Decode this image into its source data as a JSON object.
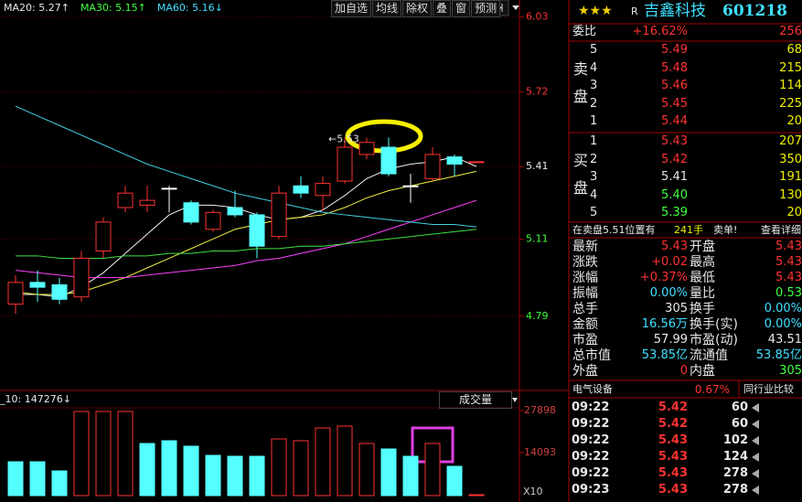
{
  "toolbar": [
    "加自选",
    "均线",
    "除权",
    "叠",
    "窗",
    "预测"
  ],
  "chart_data": [
    {
      "type": "candlestick",
      "legend": [
        {
          "text": "MA20: 5.27↑",
          "color": "#e8e8e8"
        },
        {
          "text": "MA30: 5.15↑",
          "color": "#40ff40"
        },
        {
          "text": "MA60: 5.16↓",
          "color": "#40e0ff"
        }
      ],
      "open": [
        4.84,
        4.93,
        4.92,
        4.87,
        5.06,
        5.24,
        5.25,
        5.32,
        5.26,
        5.15,
        5.24,
        5.21,
        5.12,
        5.33,
        5.29,
        5.35,
        5.46,
        5.49,
        5.33,
        5.36,
        5.45,
        5.43
      ],
      "high": [
        4.96,
        4.98,
        4.95,
        5.06,
        5.2,
        5.33,
        5.33,
        5.33,
        5.27,
        5.23,
        5.31,
        5.22,
        5.33,
        5.37,
        5.37,
        5.53,
        5.53,
        5.53,
        5.38,
        5.49,
        5.46,
        5.43
      ],
      "low": [
        4.8,
        4.85,
        4.84,
        4.85,
        5.03,
        5.22,
        5.22,
        5.22,
        5.17,
        5.14,
        5.2,
        5.03,
        5.11,
        5.28,
        5.23,
        5.34,
        5.44,
        5.37,
        5.26,
        5.35,
        5.37,
        5.43
      ],
      "close": [
        4.93,
        4.91,
        4.86,
        5.03,
        5.18,
        5.3,
        5.27,
        5.32,
        5.18,
        5.22,
        5.21,
        5.08,
        5.3,
        5.3,
        5.34,
        5.49,
        5.51,
        5.38,
        5.33,
        5.46,
        5.42,
        5.43
      ],
      "colors": [
        "#ff3232",
        "#54ffff",
        "#54ffff",
        "#ff3232",
        "#ff3232",
        "#ff3232",
        "#ff3232",
        "#ffffff",
        "#54ffff",
        "#ff3232",
        "#54ffff",
        "#54ffff",
        "#ff3232",
        "#54ffff",
        "#ff3232",
        "#ff3232",
        "#ff3232",
        "#54ffff",
        "#ffffff",
        "#ff3232",
        "#54ffff",
        "#ff3232"
      ],
      "series": [
        {
          "color": "#f0f0f0",
          "values": [
            4.88,
            4.88,
            4.87,
            4.91,
            4.97,
            5.05,
            5.13,
            5.21,
            5.25,
            5.25,
            5.24,
            5.21,
            5.19,
            5.2,
            5.23,
            5.29,
            5.36,
            5.4,
            5.42,
            5.43,
            5.45,
            5.41
          ]
        },
        {
          "color": "#f0f040",
          "values": [
            4.89,
            4.88,
            4.88,
            4.89,
            4.92,
            4.95,
            4.99,
            5.03,
            5.07,
            5.11,
            5.15,
            5.17,
            5.19,
            5.2,
            5.21,
            5.24,
            5.28,
            5.31,
            5.33,
            5.35,
            5.37,
            5.39
          ]
        },
        {
          "name": "MA20",
          "color": "#ff40ff",
          "values": [
            4.98,
            4.97,
            4.96,
            4.95,
            4.95,
            4.95,
            4.96,
            4.97,
            4.98,
            4.99,
            5.0,
            5.02,
            5.03,
            5.05,
            5.07,
            5.09,
            5.12,
            5.15,
            5.18,
            5.21,
            5.24,
            5.27
          ]
        },
        {
          "name": "MA30",
          "color": "#40e040",
          "values": [
            5.04,
            5.04,
            5.03,
            5.03,
            5.03,
            5.04,
            5.04,
            5.05,
            5.05,
            5.06,
            5.06,
            5.07,
            5.07,
            5.08,
            5.08,
            5.09,
            5.1,
            5.11,
            5.12,
            5.13,
            5.14,
            5.15
          ]
        },
        {
          "name": "MA60",
          "color": "#40d0e0",
          "values": [
            5.66,
            5.62,
            5.58,
            5.54,
            5.5,
            5.46,
            5.42,
            5.39,
            5.36,
            5.33,
            5.3,
            5.28,
            5.26,
            5.24,
            5.22,
            5.21,
            5.2,
            5.19,
            5.18,
            5.17,
            5.17,
            5.16
          ]
        }
      ],
      "annotation": "←5.53",
      "ylim": [
        4.49,
        6.1
      ],
      "yticks": [
        6.03,
        5.72,
        5.41,
        5.11,
        4.79
      ],
      "ytick_colors": [
        "#ff3232",
        "#ff3232",
        "#e8e8e8",
        "#40ff40",
        "#40ff40"
      ],
      "grid": true
    },
    {
      "type": "bar",
      "legend": "_10: 147276↓",
      "selector": "成交量",
      "values": [
        11100,
        11100,
        8100,
        27600,
        27600,
        27600,
        17100,
        18000,
        16200,
        13200,
        12900,
        12900,
        18600,
        18000,
        22200,
        22800,
        17100,
        15300,
        12900,
        17100,
        9600,
        300
      ],
      "colors": [
        "#54ffff",
        "#54ffff",
        "#54ffff",
        "#ff3232",
        "#ff3232",
        "#ff3232",
        "#54ffff",
        "#54ffff",
        "#54ffff",
        "#54ffff",
        "#54ffff",
        "#54ffff",
        "#ff3232",
        "#ff3232",
        "#ff3232",
        "#ff3232",
        "#ff3232",
        "#54ffff",
        "#54ffff",
        "#ff3232",
        "#54ffff",
        "#ff3232"
      ],
      "ylim": [
        0,
        30600
      ],
      "yticks": [
        14093,
        27898
      ],
      "unit": "X10"
    }
  ],
  "quote": {
    "header": {
      "stars": "★★★",
      "flag": "R",
      "name": "吉鑫科技",
      "code": "601218"
    },
    "ratio": {
      "label": "委比",
      "value": "+16.62%",
      "diff": "256"
    },
    "sell": {
      "label": "卖盘",
      "rows": [
        {
          "level": "5",
          "price": "5.49",
          "volume": "68"
        },
        {
          "level": "4",
          "price": "5.48",
          "volume": "215"
        },
        {
          "level": "3",
          "price": "5.46",
          "volume": "114"
        },
        {
          "level": "2",
          "price": "5.45",
          "volume": "225"
        },
        {
          "level": "1",
          "price": "5.44",
          "volume": "20"
        }
      ]
    },
    "buy": {
      "label": "买盘",
      "rows": [
        {
          "level": "1",
          "price": "5.43",
          "volume": "207",
          "color": "#ff3232"
        },
        {
          "level": "2",
          "price": "5.42",
          "volume": "350",
          "color": "#ff3232"
        },
        {
          "level": "3",
          "price": "5.41",
          "volume": "191",
          "color": "#e8e8e8"
        },
        {
          "level": "4",
          "price": "5.40",
          "volume": "130",
          "color": "#40ff40"
        },
        {
          "level": "5",
          "price": "5.39",
          "volume": "20",
          "color": "#40ff40"
        }
      ]
    },
    "notice": {
      "text": "在卖盘5.51位置有",
      "lots": "241手",
      "alert": "卖单!",
      "link": "查看详细"
    },
    "stats": [
      {
        "l1": "最新",
        "v1": "5.43",
        "c1": "#ff3232",
        "l2": "开盘",
        "v2": "5.43",
        "c2": "#ff3232"
      },
      {
        "l1": "涨跌",
        "v1": "+0.02",
        "c1": "#ff3232",
        "l2": "最高",
        "v2": "5.43",
        "c2": "#ff3232"
      },
      {
        "l1": "涨幅",
        "v1": "+0.37%",
        "c1": "#ff3232",
        "l2": "最低",
        "v2": "5.43",
        "c2": "#ff3232"
      },
      {
        "l1": "振幅",
        "v1": "0.00%",
        "c1": "#40e0ff",
        "l2": "量比",
        "v2": "0.53",
        "c2": "#40ff40"
      },
      {
        "l1": "总手",
        "v1": "305",
        "c1": "#e8e8e8",
        "l2": "换手",
        "v2": "0.00%",
        "c2": "#40e0ff"
      },
      {
        "l1": "金额",
        "v1": "16.56万",
        "c1": "#40e0ff",
        "l2": "换手(实)",
        "v2": "0.00%",
        "c2": "#40e0ff"
      },
      {
        "l1": "市盈",
        "v1": "57.99",
        "c1": "#e8e8e8",
        "l2": "市盈(动)",
        "v2": "43.51",
        "c2": "#e8e8e8"
      },
      {
        "l1": "总市值",
        "v1": "53.85亿",
        "c1": "#40e0ff",
        "l2": "流通值",
        "v2": "53.85亿",
        "c2": "#40e0ff"
      },
      {
        "l1": "外盘",
        "v1": "0",
        "c1": "#ff3232",
        "l2": "内盘",
        "v2": "305",
        "c2": "#40ff40"
      }
    ],
    "sector": {
      "name": "电气设备",
      "change": "0.67%",
      "compare": "同行业比较"
    },
    "ticks": [
      [
        "09:22",
        "5.42",
        "60"
      ],
      [
        "09:22",
        "5.42",
        "60"
      ],
      [
        "09:22",
        "5.43",
        "102"
      ],
      [
        "09:22",
        "5.43",
        "124"
      ],
      [
        "09:22",
        "5.43",
        "278"
      ],
      [
        "09:23",
        "5.43",
        "278"
      ]
    ]
  }
}
